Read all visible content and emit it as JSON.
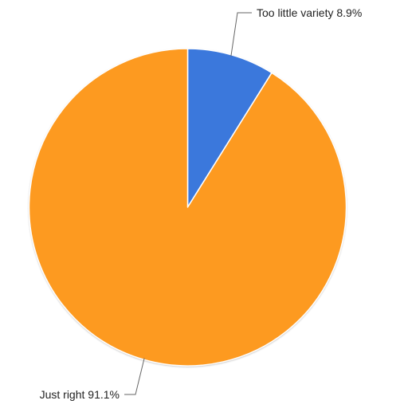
{
  "chart_data": {
    "type": "pie",
    "title": "",
    "legend": "none",
    "start_angle_deg": 0,
    "direction": "clockwise",
    "slices": [
      {
        "label": "Too little variety",
        "value": 8.9,
        "value_label": "8.9%",
        "color": "#3b78dc"
      },
      {
        "label": "Just right",
        "value": 91.1,
        "value_label": "91.1%",
        "color": "#fd9a20"
      }
    ]
  }
}
